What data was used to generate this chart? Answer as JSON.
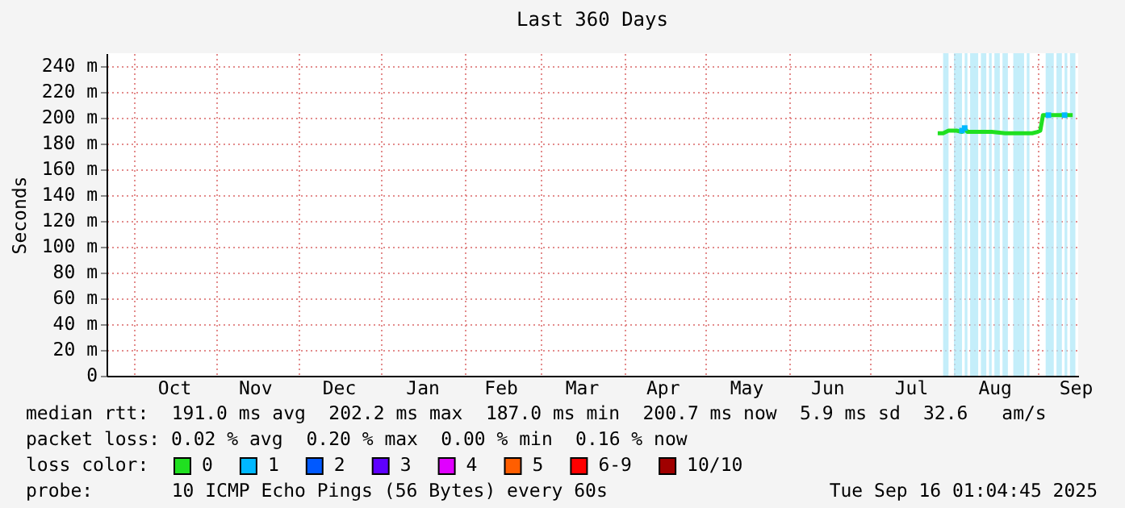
{
  "chart_data": {
    "type": "line",
    "title": "Last 360 Days",
    "ylabel": "Seconds",
    "legend_title": "loss color:",
    "legend": "bottom",
    "xlim": [
      "2024-09-21T01:04",
      "2025-09-16T01:04"
    ],
    "xticks": [
      {
        "value": "2024-10-01",
        "label": null
      },
      {
        "value": "2024-10-16",
        "label": "Oct"
      },
      {
        "value": "2024-11-01",
        "label": null
      },
      {
        "value": "2024-11-15",
        "label": "Nov"
      },
      {
        "value": "2024-12-01",
        "label": null
      },
      {
        "value": "2024-12-16",
        "label": "Dec"
      },
      {
        "value": "2025-01-01",
        "label": null
      },
      {
        "value": "2025-01-16",
        "label": "Jan"
      },
      {
        "value": "2025-02-01",
        "label": null
      },
      {
        "value": "2025-02-14",
        "label": "Feb"
      },
      {
        "value": "2025-03-01",
        "label": null
      },
      {
        "value": "2025-03-16",
        "label": "Mar"
      },
      {
        "value": "2025-04-01",
        "label": null
      },
      {
        "value": "2025-04-15",
        "label": "Apr"
      },
      {
        "value": "2025-05-01",
        "label": null
      },
      {
        "value": "2025-05-16",
        "label": "May"
      },
      {
        "value": "2025-06-01",
        "label": null
      },
      {
        "value": "2025-06-15",
        "label": "Jun"
      },
      {
        "value": "2025-07-01",
        "label": null
      },
      {
        "value": "2025-07-16",
        "label": "Jul"
      },
      {
        "value": "2025-08-01",
        "label": null
      },
      {
        "value": "2025-08-16",
        "label": "Aug"
      },
      {
        "value": "2025-09-01",
        "label": null
      },
      {
        "value": "2025-09-15",
        "label": "Sep"
      }
    ],
    "ylim": [
      0,
      250
    ],
    "yticks": [
      0,
      {
        "value": 20,
        "label": "20 m"
      },
      {
        "value": 40,
        "label": "40 m"
      },
      {
        "value": 60,
        "label": "60 m"
      },
      {
        "value": 80,
        "label": "80 m"
      },
      {
        "value": 100,
        "label": "100 m"
      },
      {
        "value": 120,
        "label": "120 m"
      },
      {
        "value": 140,
        "label": "140 m"
      },
      {
        "value": 160,
        "label": "160 m"
      },
      {
        "value": 180,
        "label": "180 m"
      },
      {
        "value": 200,
        "label": "200 m"
      },
      {
        "value": 220,
        "label": "220 m"
      },
      {
        "value": 240,
        "label": "240 m"
      }
    ],
    "grid": true,
    "series": [
      {
        "name": "0",
        "color": "#20e020",
        "x": [
          "2025-07-26",
          "2025-07-28",
          "2025-07-30",
          "2025-08-02",
          "2025-08-04",
          "2025-08-05",
          "2025-08-06",
          "2025-08-10",
          "2025-08-15",
          "2025-08-20",
          "2025-08-25",
          "2025-08-30",
          "2025-09-01",
          "2025-09-02",
          "2025-09-03",
          "2025-09-06",
          "2025-09-10",
          "2025-09-14"
        ],
        "values": [
          188,
          188,
          190,
          190,
          189,
          192,
          189,
          189,
          189,
          188,
          188,
          188,
          189,
          190,
          202,
          202,
          202,
          202
        ]
      },
      {
        "name": "1",
        "color": "#00b8ff",
        "type": "scatter",
        "marker": "square",
        "x": [
          "2025-08-04",
          "2025-08-05",
          "2025-09-05",
          "2025-09-11"
        ],
        "values": [
          190,
          192,
          202,
          202
        ]
      },
      {
        "name": "2",
        "color": "#0059ff"
      },
      {
        "name": "3",
        "color": "#5e00ff"
      },
      {
        "name": "4",
        "color": "#e000ff"
      },
      {
        "name": "5",
        "color": "#ff5e00"
      },
      {
        "name": "6-9",
        "color": "#ff0000"
      },
      {
        "name": "10/10",
        "color": "#a00000"
      }
    ],
    "bands": [
      {
        "axis": "x",
        "from": "2025-07-28",
        "to": "2025-07-30",
        "color": "#b0e8f8"
      },
      {
        "axis": "x",
        "from": "2025-08-01",
        "to": "2025-08-04",
        "color": "#b0e8f8"
      },
      {
        "axis": "x",
        "from": "2025-08-05",
        "to": "2025-08-06",
        "color": "#b0e8f8"
      },
      {
        "axis": "x",
        "from": "2025-08-07",
        "to": "2025-08-10",
        "color": "#b0e8f8"
      },
      {
        "axis": "x",
        "from": "2025-08-11",
        "to": "2025-08-13",
        "color": "#b0e8f8"
      },
      {
        "axis": "x",
        "from": "2025-08-14",
        "to": "2025-08-15",
        "color": "#b0e8f8"
      },
      {
        "axis": "x",
        "from": "2025-08-16",
        "to": "2025-08-18",
        "color": "#b0e8f8"
      },
      {
        "axis": "x",
        "from": "2025-08-19",
        "to": "2025-08-21",
        "color": "#b0e8f8"
      },
      {
        "axis": "x",
        "from": "2025-08-23",
        "to": "2025-08-27",
        "color": "#b0e8f8"
      },
      {
        "axis": "x",
        "from": "2025-08-28",
        "to": "2025-08-29",
        "color": "#b0e8f8"
      },
      {
        "axis": "x",
        "from": "2025-09-04",
        "to": "2025-09-07",
        "color": "#b0e8f8"
      },
      {
        "axis": "x",
        "from": "2025-09-08",
        "to": "2025-09-10",
        "color": "#b0e8f8"
      },
      {
        "axis": "x",
        "from": "2025-09-11",
        "to": "2025-09-12",
        "color": "#b0e8f8"
      },
      {
        "axis": "x",
        "from": "2025-09-13",
        "to": "2025-09-15",
        "color": "#b0e8f8"
      }
    ],
    "annotations": [
      "median rtt:  191.0 ms avg  202.2 ms max  187.0 ms min  200.7 ms now  5.9 ms sd  32.6   am/s",
      "packet loss: 0.02 % avg  0.20 % max  0.00 % min  0.16 % now",
      "probe:       10 ICMP Echo Pings (56 Bytes) every 60s",
      "Tue Sep 16 01:04:45 2025"
    ]
  }
}
